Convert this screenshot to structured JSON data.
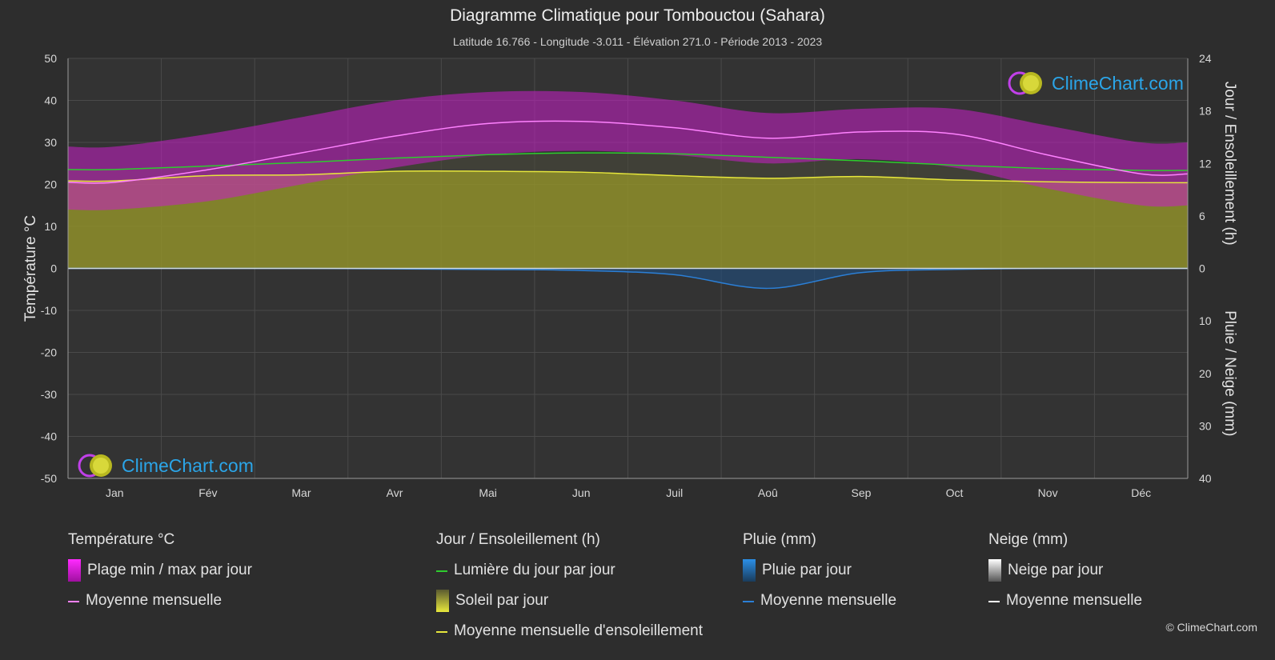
{
  "title": "Diagramme Climatique pour Tombouctou (Sahara)",
  "subtitle": "Latitude 16.766 - Longitude -3.011 - Élévation 271.0 - Période 2013 - 2023",
  "logo_text": "ClimeChart.com",
  "copyright": "© ClimeChart.com",
  "colors": {
    "background": "#2d2d2d",
    "temp_range": "#c81ec8",
    "temp_mean": "#ff82ff",
    "daylight": "#2ecc2e",
    "sunshine_fill": "#9c9c28",
    "sunshine_mean": "#e6e63c",
    "rain": "#2b7fd6",
    "snow": "#ffffff"
  },
  "legend": {
    "temperature": {
      "heading": "Température °C",
      "range": "Plage min / max par jour",
      "mean": "Moyenne mensuelle"
    },
    "sun": {
      "heading": "Jour / Ensoleillement (h)",
      "daylight": "Lumière du jour par jour",
      "sunshine": "Soleil par jour",
      "sunshine_mean": "Moyenne mensuelle d'ensoleillement"
    },
    "rain": {
      "heading": "Pluie (mm)",
      "daily": "Pluie par jour",
      "mean": "Moyenne mensuelle"
    },
    "snow": {
      "heading": "Neige (mm)",
      "daily": "Neige par jour",
      "mean": "Moyenne mensuelle"
    }
  },
  "chart_data": {
    "type": "area",
    "categories": [
      "Jan",
      "Fév",
      "Mar",
      "Avr",
      "Mai",
      "Jun",
      "Juil",
      "Aoû",
      "Sep",
      "Oct",
      "Nov",
      "Déc"
    ],
    "y_left": {
      "label": "Température °C",
      "range": [
        -50,
        50
      ],
      "ticks": [
        50,
        40,
        30,
        20,
        10,
        0,
        -10,
        -20,
        -30,
        -40,
        -50
      ]
    },
    "y_right_top": {
      "label": "Jour / Ensoleillement (h)",
      "range": [
        0,
        24
      ],
      "ticks": [
        24,
        18,
        12,
        6,
        0
      ]
    },
    "y_right_bottom": {
      "label": "Pluie / Neige (mm)",
      "range": [
        0,
        40
      ],
      "ticks": [
        0,
        10,
        20,
        30,
        40
      ]
    },
    "grid": true,
    "series": [
      {
        "name": "Moyenne mensuelle",
        "kind": "temp_mean",
        "values": [
          20.5,
          23.5,
          27.5,
          31.5,
          34.5,
          35,
          33.5,
          31,
          32.5,
          32,
          27,
          22.5
        ]
      },
      {
        "name": "Plage min / max par jour",
        "kind": "temp_range",
        "min": [
          14,
          16,
          20,
          24,
          27,
          28,
          27,
          25,
          26,
          24,
          19,
          15
        ],
        "max": [
          29,
          32,
          36,
          40,
          42,
          42,
          40,
          37,
          38,
          38,
          34,
          30
        ]
      },
      {
        "name": "Lumière du jour par jour",
        "kind": "daylight",
        "values": [
          11.3,
          11.7,
          12.1,
          12.6,
          13.0,
          13.2,
          13.1,
          12.7,
          12.3,
          11.8,
          11.4,
          11.2
        ]
      },
      {
        "name": "Moyenne mensuelle d'ensoleillement",
        "kind": "sunshine_mean",
        "values": [
          10.0,
          10.6,
          10.7,
          11.1,
          11.1,
          11.0,
          10.6,
          10.3,
          10.5,
          10.1,
          9.9,
          9.8
        ]
      },
      {
        "name": "Moyenne mensuelle",
        "kind": "rain_mean",
        "values": [
          0,
          0,
          0,
          0.1,
          0.2,
          0.4,
          1.2,
          3.8,
          0.8,
          0.2,
          0,
          0
        ]
      }
    ]
  }
}
